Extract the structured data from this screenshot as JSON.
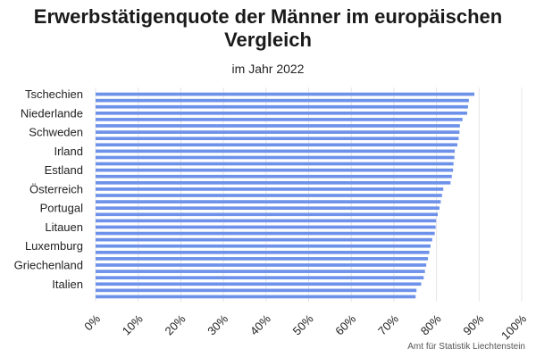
{
  "title": "Erwerbstätigenquote der Männer im europäischen Vergleich",
  "subtitle": "im Jahr 2022",
  "source": "Amt für Statistik Liechtenstein",
  "colors": {
    "bar": "#6e92ea",
    "grid": "#e4e4e4",
    "text": "#222222"
  },
  "chart_data": {
    "type": "bar",
    "orientation": "horizontal",
    "categories": [
      "Tschechien",
      "",
      "",
      "Niederlande",
      "",
      "",
      "Schweden",
      "",
      "",
      "Irland",
      "",
      "",
      "Estland",
      "",
      "",
      "Österreich",
      "",
      "",
      "Portugal",
      "",
      "",
      "Litauen",
      "",
      "",
      "Luxemburg",
      "",
      "",
      "Griechenland",
      "",
      "",
      "Italien",
      "",
      ""
    ],
    "values": [
      88.9,
      87.6,
      87.4,
      87.2,
      86.1,
      85.5,
      85.4,
      85.2,
      84.9,
      84.3,
      84.2,
      84.0,
      83.9,
      83.6,
      83.3,
      81.6,
      81.3,
      81.0,
      80.7,
      80.3,
      79.9,
      79.8,
      79.6,
      79.0,
      78.6,
      78.3,
      78.0,
      77.6,
      77.3,
      77.0,
      76.4,
      75.3,
      75.1
    ],
    "xlim": [
      0,
      100
    ],
    "xticks": [
      "0%",
      "10%",
      "20%",
      "30%",
      "40%",
      "50%",
      "60%",
      "70%",
      "80%",
      "90%",
      "100%"
    ],
    "grid": "vertical",
    "legend": "none"
  }
}
